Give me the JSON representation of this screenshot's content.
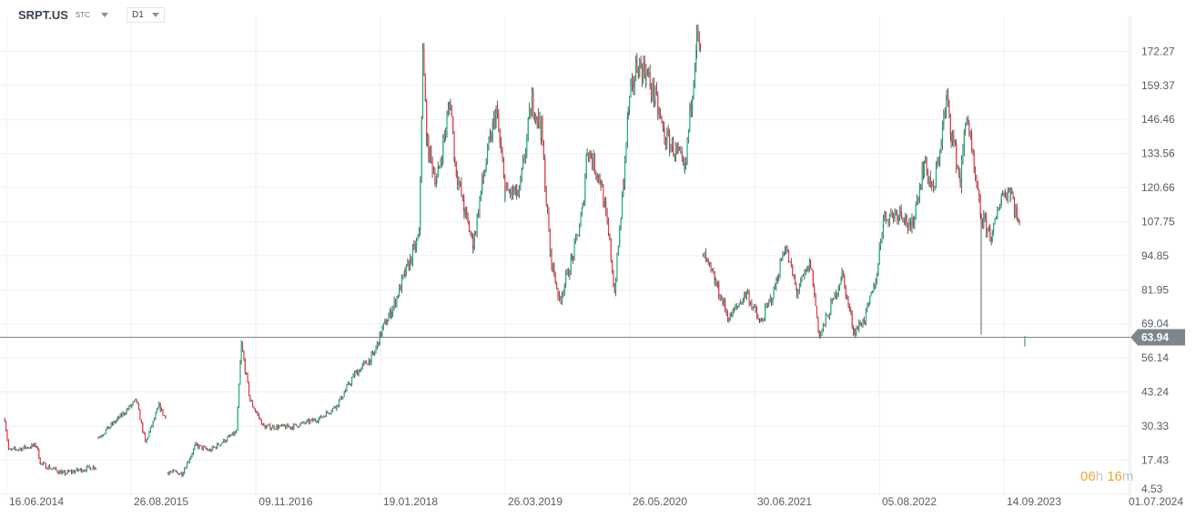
{
  "header": {
    "symbol": "SRPT.US",
    "exchange": "STC",
    "timeframe": "D1"
  },
  "timer": {
    "hours": "06",
    "h": "h",
    "minutes": "16",
    "m": "m"
  },
  "colors": {
    "up": "#14b07b",
    "down": "#f0304a",
    "wick": "#3a3a3a",
    "grid": "#eeeff1",
    "price_line": "#7d868c"
  },
  "chart_data": {
    "type": "candlestick",
    "title": "",
    "y_ticks": [
      "172.27",
      "159.37",
      "146.46",
      "133.56",
      "120.66",
      "107.75",
      "94.85",
      "81.95",
      "69.04",
      "56.14",
      "43.24",
      "30.33",
      "17.43",
      "4.53"
    ],
    "x_ticks": [
      "16.06.2014",
      "26.08.2015",
      "09.11.2016",
      "19.01.2018",
      "26.03.2019",
      "26.05.2020",
      "30.06.2021",
      "05.08.2022",
      "14.09.2023",
      "01.07.2024"
    ],
    "ylim": [
      4.53,
      180
    ],
    "current_price": "63.94",
    "grid": true,
    "approx_close_path_segments": [
      [
        [
          "2014-02-25",
          33
        ],
        [
          "2014-03-11",
          21
        ],
        [
          "2014-06-16",
          23
        ],
        [
          "2014-07-01",
          16
        ],
        [
          "2014-09-20",
          12.4
        ],
        [
          "2015-01-10",
          15
        ]
      ],
      [
        [
          "2015-01-19",
          26
        ],
        [
          "2015-03-28",
          33
        ],
        [
          "2015-06-01",
          40
        ],
        [
          "2015-07-03",
          24
        ],
        [
          "2015-08-20",
          38
        ],
        [
          "2015-09-12",
          33
        ]
      ],
      [
        [
          "2015-09-21",
          13
        ],
        [
          "2015-11-08",
          12.4
        ],
        [
          "2015-12-26",
          23
        ],
        [
          "2016-02-13",
          21
        ],
        [
          "2016-05-17",
          28
        ],
        [
          "2016-06-03",
          61
        ],
        [
          "2016-07-04",
          40
        ],
        [
          "2016-08-21",
          30
        ],
        [
          "2016-11-25",
          30
        ],
        [
          "2017-03-01",
          33
        ],
        [
          "2017-05-03",
          38
        ],
        [
          "2017-07-06",
          50
        ],
        [
          "2017-09-09",
          57
        ],
        [
          "2017-10-10",
          67
        ],
        [
          "2017-11-12",
          74
        ],
        [
          "2017-12-29",
          88
        ],
        [
          "2018-02-16",
          102
        ],
        [
          "2018-03-01",
          171
        ],
        [
          "2018-03-17",
          136
        ],
        [
          "2018-04-19",
          123
        ],
        [
          "2018-06-06",
          154
        ],
        [
          "2018-06-22",
          130
        ],
        [
          "2018-07-24",
          112
        ],
        [
          "2018-08-25",
          99
        ],
        [
          "2018-09-26",
          123
        ],
        [
          "2018-11-13",
          150
        ],
        [
          "2018-12-15",
          119
        ],
        [
          "2019-02-02",
          118
        ],
        [
          "2019-03-19",
          154
        ],
        [
          "2019-04-20",
          143
        ],
        [
          "2019-05-22",
          95
        ],
        [
          "2019-06-23",
          78
        ],
        [
          "2019-08-10",
          95
        ],
        [
          "2019-09-12",
          112
        ],
        [
          "2019-09-28",
          136
        ],
        [
          "2019-11-15",
          123
        ],
        [
          "2019-12-16",
          99
        ],
        [
          "2020-01-02",
          81
        ],
        [
          "2020-02-03",
          123
        ],
        [
          "2020-02-19",
          150
        ],
        [
          "2020-03-21",
          168
        ],
        [
          "2020-04-22",
          164
        ],
        [
          "2020-05-24",
          154
        ],
        [
          "2020-06-25",
          140
        ],
        [
          "2020-08-12",
          133
        ],
        [
          "2020-09-04",
          126
        ],
        [
          "2020-10-16",
          178
        ],
        [
          "2020-11-02",
          168
        ]
      ],
      [
        [
          "2020-11-08",
          95
        ],
        [
          "2020-12-19",
          85
        ],
        [
          "2021-02-06",
          71
        ],
        [
          "2021-04-09",
          81
        ],
        [
          "2021-05-26",
          69
        ],
        [
          "2021-07-13",
          81
        ],
        [
          "2021-08-21",
          99
        ],
        [
          "2021-10-02",
          81
        ],
        [
          "2021-11-19",
          92
        ],
        [
          "2021-12-20",
          64
        ],
        [
          "2022-02-07",
          78
        ],
        [
          "2022-03-09",
          88
        ],
        [
          "2022-04-20",
          66
        ],
        [
          "2022-05-28",
          71
        ],
        [
          "2022-07-05",
          85
        ],
        [
          "2022-08-01",
          109
        ],
        [
          "2022-10-04",
          112
        ],
        [
          "2022-11-05",
          104
        ],
        [
          "2022-12-22",
          130
        ],
        [
          "2023-01-24",
          119
        ],
        [
          "2023-03-11",
          154
        ],
        [
          "2023-03-27",
          142
        ],
        [
          "2023-04-28",
          123
        ],
        [
          "2023-05-20",
          150
        ],
        [
          "2023-06-15",
          126
        ],
        [
          "2023-07-10",
          109,
          65
        ],
        [
          "2023-08-18",
          102
        ],
        [
          "2023-09-19",
          118
        ],
        [
          "2023-10-21",
          120
        ],
        [
          "2023-11-22",
          105
        ]
      ],
      [
        [
          "2023-12-10",
          63.94
        ]
      ]
    ]
  }
}
